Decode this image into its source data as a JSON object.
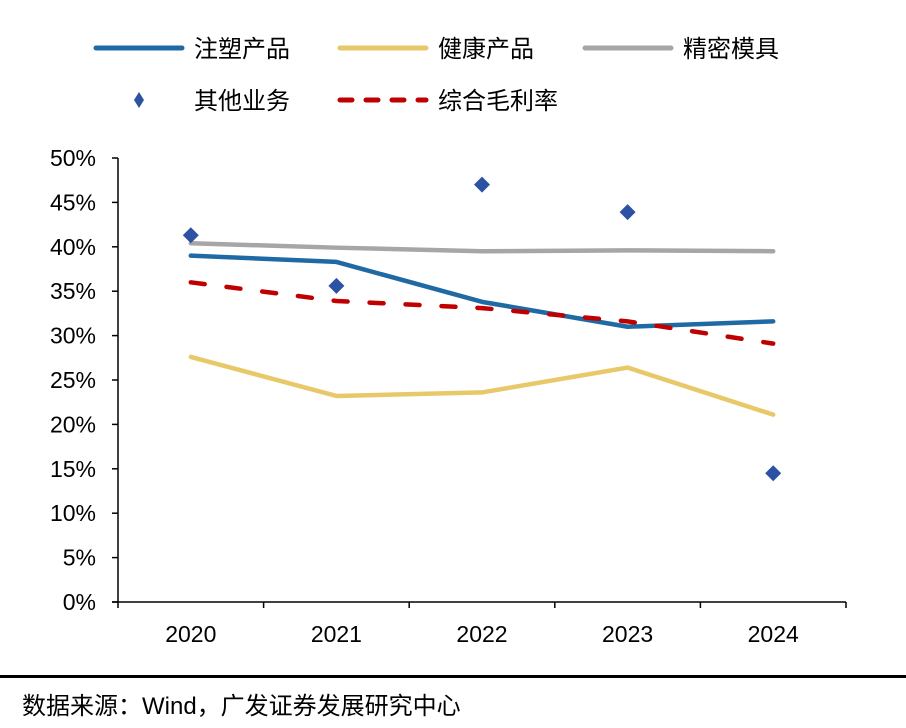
{
  "chart_data": {
    "type": "line",
    "title": "",
    "xlabel": "",
    "ylabel": "",
    "categories": [
      "2020",
      "2021",
      "2022",
      "2023",
      "2024"
    ],
    "ylim": [
      0,
      50
    ],
    "yticks": [
      "0%",
      "5%",
      "10%",
      "15%",
      "20%",
      "25%",
      "30%",
      "35%",
      "40%",
      "45%",
      "50%"
    ],
    "ytick_values": [
      0,
      5,
      10,
      15,
      20,
      25,
      30,
      35,
      40,
      45,
      50
    ],
    "grid": false,
    "legend_position": "top",
    "series": [
      {
        "name": "注塑产品",
        "style": "line",
        "color": "#1f6aa5",
        "values": [
          39.0,
          38.3,
          33.8,
          31.0,
          31.6
        ]
      },
      {
        "name": "健康产品",
        "style": "line",
        "color": "#e8c96a",
        "values": [
          27.6,
          23.2,
          23.6,
          26.4,
          21.1
        ]
      },
      {
        "name": "精密模具",
        "style": "line",
        "color": "#a6a6a6",
        "values": [
          40.4,
          39.9,
          39.5,
          39.6,
          39.5
        ]
      },
      {
        "name": "其他业务",
        "style": "marker",
        "color": "#2e52a3",
        "values": [
          41.3,
          35.6,
          47.0,
          43.9,
          14.5
        ]
      },
      {
        "name": "综合毛利率",
        "style": "dashed",
        "color": "#c00000",
        "values": [
          36.0,
          33.9,
          33.1,
          31.6,
          29.1
        ]
      }
    ]
  },
  "footer": {
    "prefix": "数据来源：",
    "source": "Wind",
    "suffix": "，广发证券发展研究中心"
  }
}
